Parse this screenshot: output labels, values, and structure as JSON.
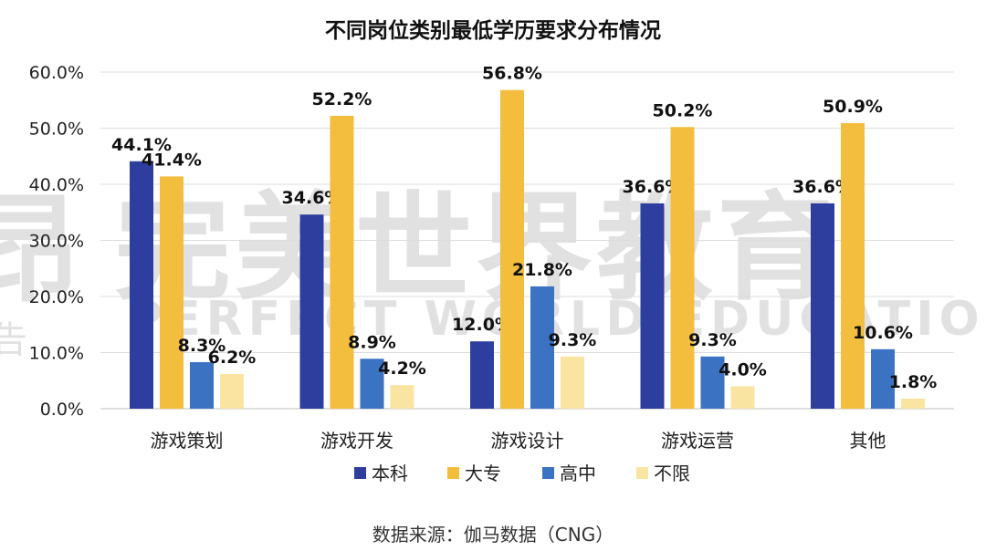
{
  "title": "不同岗位类别最低学历要求分布情况",
  "source": "数据来源：伽马数据（CNG）",
  "watermark": {
    "cn": "完美世界教育",
    "en": "PERFECT WORLD EDUCATION",
    "edge1": "昂",
    "edge2": "告"
  },
  "colors": {
    "本科": "#2e3e9e",
    "大专": "#f3bd3e",
    "高中": "#3b72c2",
    "不限": "#f9e4a2"
  },
  "chart_data": {
    "type": "bar",
    "title": "不同岗位类别最低学历要求分布情况",
    "categories": [
      "游戏策划",
      "游戏开发",
      "游戏设计",
      "游戏运营",
      "其他"
    ],
    "series": [
      {
        "name": "本科",
        "values": [
          44.1,
          34.6,
          12.0,
          36.6,
          36.6
        ]
      },
      {
        "name": "大专",
        "values": [
          41.4,
          52.2,
          56.8,
          50.2,
          50.9
        ]
      },
      {
        "name": "高中",
        "values": [
          8.3,
          8.9,
          21.8,
          9.3,
          10.6
        ]
      },
      {
        "name": "不限",
        "values": [
          6.2,
          4.2,
          9.3,
          4.0,
          1.8
        ]
      }
    ],
    "ylim": [
      0,
      60
    ],
    "yticks": [
      "0.0%",
      "10.0%",
      "20.0%",
      "30.0%",
      "40.0%",
      "50.0%",
      "60.0%"
    ],
    "data_labels": [
      [
        "44.1%",
        "34.6%",
        "12.0%",
        "36.6%",
        "36.6%"
      ],
      [
        "41.4%",
        "52.2%",
        "56.8%",
        "50.2%",
        "50.9%"
      ],
      [
        "8.3%",
        "8.9%",
        "21.8%",
        "9.3%",
        "10.6%"
      ],
      [
        "6.2%",
        "4.2%",
        "9.3%",
        "4.0%",
        "1.8%"
      ]
    ],
    "grid": true,
    "legend": "bottom-center"
  }
}
